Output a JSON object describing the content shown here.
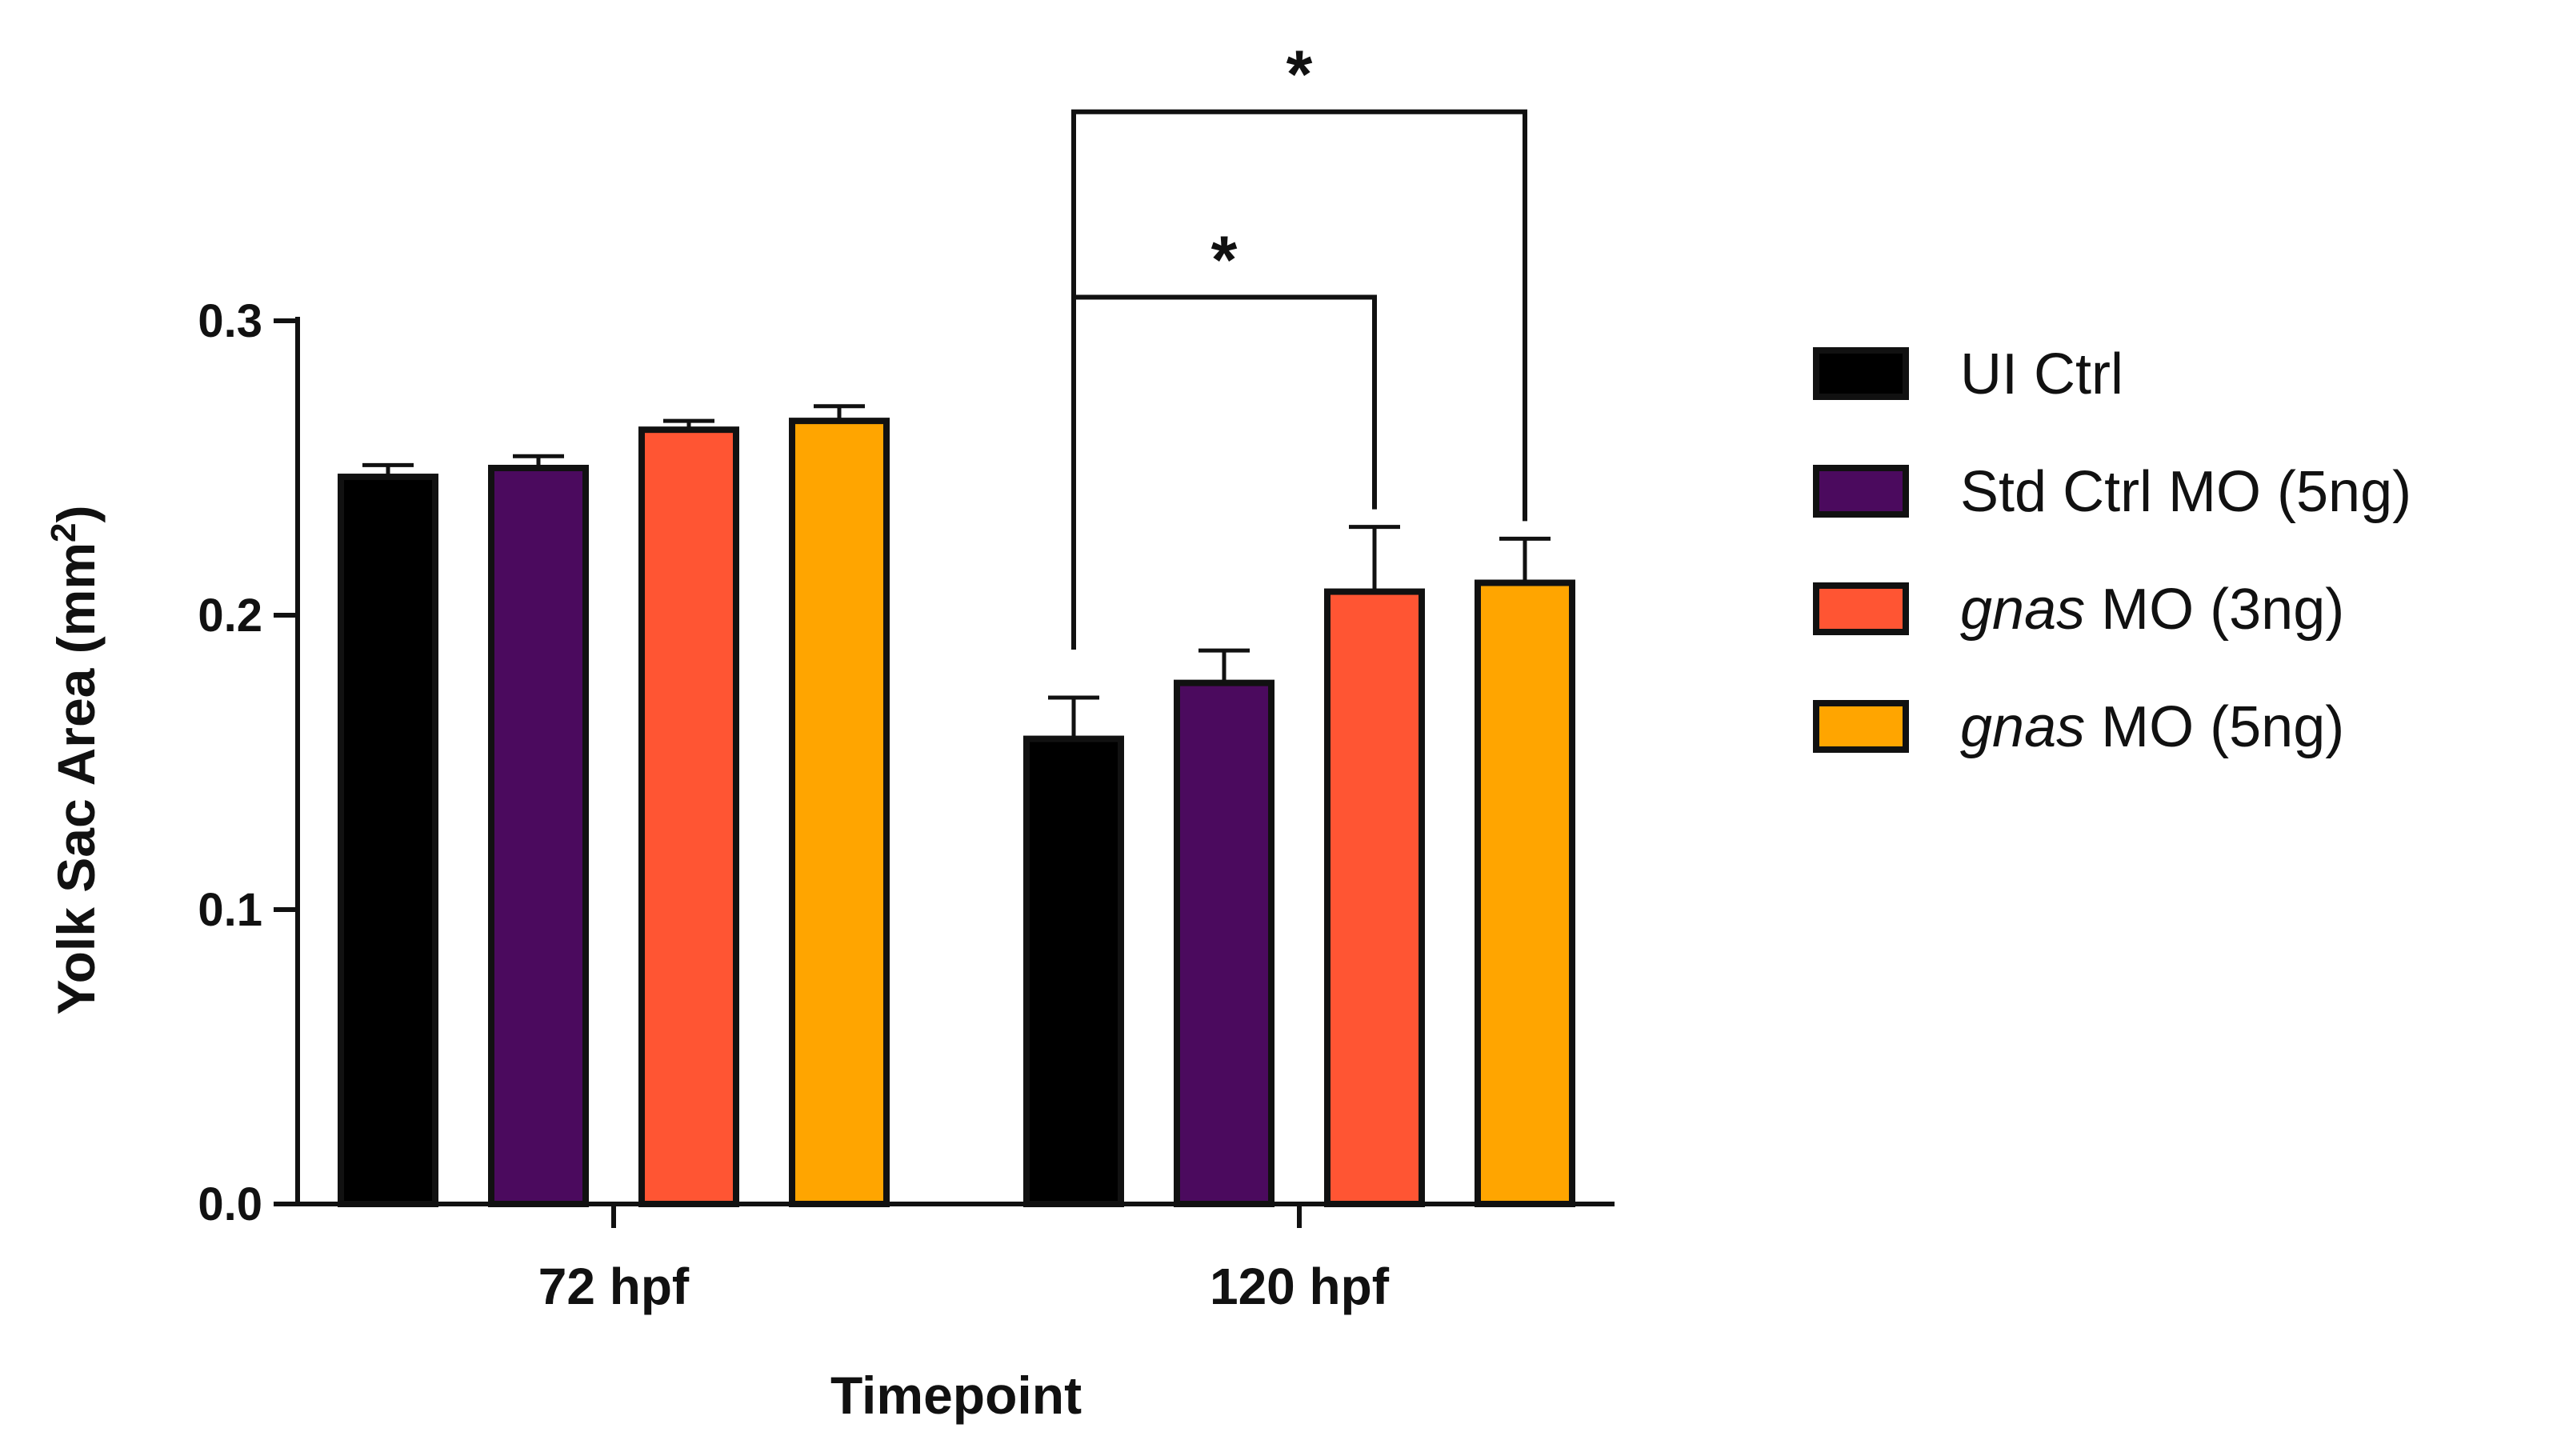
{
  "chart_data": {
    "type": "bar",
    "title": "",
    "xlabel": "Timepoint",
    "ylabel": "Yolk Sac Area (mm",
    "ylabel_superscript": "2",
    "ylabel_close": ")",
    "ylim": [
      0.0,
      0.3
    ],
    "yticks": [
      "0.0",
      "0.1",
      "0.2",
      "0.3"
    ],
    "categories": [
      "72 hpf",
      "120 hpf"
    ],
    "series": [
      {
        "name": "UI Ctrl",
        "name_italic": "",
        "name_rest": "UI Ctrl",
        "color": "#000000",
        "values": [
          0.247,
          0.158
        ],
        "errors": [
          0.004,
          0.014
        ]
      },
      {
        "name": "Std Ctrl MO (5ng)",
        "name_italic": "",
        "name_rest": "Std Ctrl MO (5ng)",
        "color": "#4b0a5e",
        "values": [
          0.25,
          0.177
        ],
        "errors": [
          0.004,
          0.011
        ]
      },
      {
        "name": "gnas MO (3ng)",
        "name_italic": "gnas",
        "name_rest": " MO (3ng)",
        "color": "#ff5533",
        "values": [
          0.263,
          0.208
        ],
        "errors": [
          0.003,
          0.022
        ]
      },
      {
        "name": "gnas MO (5ng)",
        "name_italic": "gnas",
        "name_rest": " MO (5ng)",
        "color": "#ffa500",
        "values": [
          0.266,
          0.211
        ],
        "errors": [
          0.005,
          0.015
        ]
      }
    ],
    "significance": [
      {
        "label": "*",
        "category": "120 hpf",
        "from_series": 0,
        "to_series": 2,
        "level": 0.308
      },
      {
        "label": "*",
        "category": "120 hpf",
        "from_series": 0,
        "to_series": 3,
        "level": 0.371
      }
    ],
    "legend": "right"
  }
}
